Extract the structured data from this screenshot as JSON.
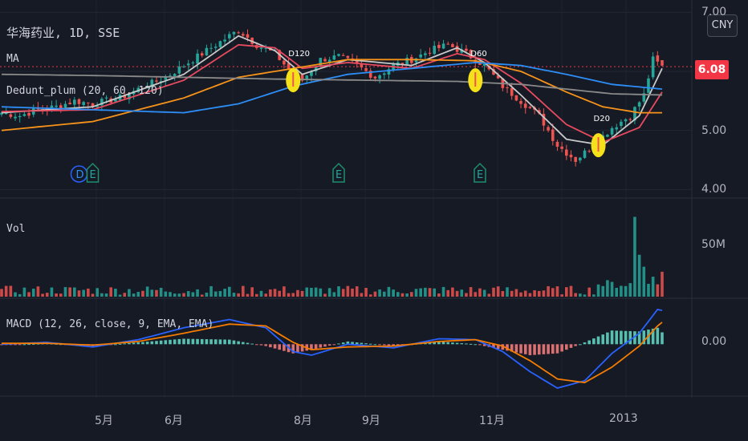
{
  "header": {
    "symbol_line": "华海药业, 1D, SSE",
    "ma_label": "MA",
    "dedunt_label": "Dedunt_plum (20, 60, 120)",
    "vol_label": "Vol",
    "macd_label": "MACD (12, 26, close, 9, EMA, EMA)"
  },
  "currency_button": "CNY",
  "last_price": "6.08",
  "colors": {
    "background": "#161a25",
    "up": "#26a69a",
    "down": "#ef5350",
    "ma_white": "#c9c9c9",
    "ma_red": "#e84a5f",
    "ma_orange": "#f7931a",
    "ma_blue": "#2e8ef7",
    "ma_gray": "#8a8a8a",
    "macd_line": "#2962ff",
    "signal_line": "#f57c00",
    "marker": "#f5e11a"
  },
  "chart_data": [
    {
      "type": "candlestick",
      "panel": "price",
      "y_ticks": [
        "7.00",
        "6.00",
        "5.00",
        "4.00"
      ],
      "ylim": [
        3.95,
        7.1
      ],
      "x_labels": [
        "5月",
        "6月",
        "8月",
        "9月",
        "11月",
        "2013"
      ],
      "x_label_index": [
        20,
        36,
        66,
        82,
        110,
        136
      ],
      "n_bars": 146,
      "close_path": [
        [
          0,
          5.3
        ],
        [
          4,
          5.25
        ],
        [
          8,
          5.35
        ],
        [
          12,
          5.4
        ],
        [
          16,
          5.5
        ],
        [
          20,
          5.45
        ],
        [
          26,
          5.55
        ],
        [
          30,
          5.7
        ],
        [
          36,
          5.9
        ],
        [
          42,
          6.2
        ],
        [
          48,
          6.5
        ],
        [
          52,
          6.7
        ],
        [
          56,
          6.45
        ],
        [
          60,
          6.3
        ],
        [
          64,
          5.95
        ],
        [
          66,
          5.85
        ],
        [
          70,
          6.2
        ],
        [
          74,
          6.25
        ],
        [
          78,
          6.1
        ],
        [
          82,
          5.9
        ],
        [
          86,
          6.1
        ],
        [
          90,
          6.2
        ],
        [
          94,
          6.35
        ],
        [
          98,
          6.45
        ],
        [
          102,
          6.3
        ],
        [
          106,
          6.1
        ],
        [
          110,
          5.75
        ],
        [
          114,
          5.5
        ],
        [
          118,
          5.25
        ],
        [
          122,
          4.75
        ],
        [
          126,
          4.5
        ],
        [
          130,
          4.75
        ],
        [
          134,
          5.05
        ],
        [
          138,
          5.25
        ],
        [
          141,
          5.6
        ],
        [
          143,
          6.2
        ],
        [
          145,
          6.08
        ]
      ],
      "series": [
        {
          "name": "MA white",
          "color": "#c9c9c9",
          "points": [
            [
              0,
              5.3
            ],
            [
              20,
              5.4
            ],
            [
              40,
              5.95
            ],
            [
              52,
              6.6
            ],
            [
              60,
              6.35
            ],
            [
              66,
              5.95
            ],
            [
              76,
              6.2
            ],
            [
              90,
              6.1
            ],
            [
              100,
              6.4
            ],
            [
              106,
              6.15
            ],
            [
              114,
              5.6
            ],
            [
              124,
              4.85
            ],
            [
              132,
              4.75
            ],
            [
              140,
              5.25
            ],
            [
              145,
              6.05
            ]
          ]
        },
        {
          "name": "MA red",
          "color": "#e84a5f",
          "points": [
            [
              0,
              5.32
            ],
            [
              20,
              5.35
            ],
            [
              40,
              5.85
            ],
            [
              52,
              6.45
            ],
            [
              60,
              6.4
            ],
            [
              66,
              6.05
            ],
            [
              76,
              6.15
            ],
            [
              90,
              6.05
            ],
            [
              100,
              6.3
            ],
            [
              106,
              6.2
            ],
            [
              114,
              5.8
            ],
            [
              124,
              5.1
            ],
            [
              132,
              4.8
            ],
            [
              140,
              5.05
            ],
            [
              145,
              5.65
            ]
          ]
        },
        {
          "name": "MA orange",
          "color": "#f7931a",
          "points": [
            [
              0,
              5.0
            ],
            [
              20,
              5.15
            ],
            [
              40,
              5.55
            ],
            [
              52,
              5.9
            ],
            [
              64,
              6.05
            ],
            [
              76,
              6.2
            ],
            [
              90,
              6.2
            ],
            [
              104,
              6.18
            ],
            [
              114,
              6.0
            ],
            [
              124,
              5.65
            ],
            [
              132,
              5.4
            ],
            [
              140,
              5.3
            ],
            [
              145,
              5.3
            ]
          ]
        },
        {
          "name": "MA blue",
          "color": "#2e8ef7",
          "points": [
            [
              0,
              5.4
            ],
            [
              20,
              5.35
            ],
            [
              40,
              5.3
            ],
            [
              52,
              5.45
            ],
            [
              64,
              5.75
            ],
            [
              76,
              5.95
            ],
            [
              90,
              6.05
            ],
            [
              104,
              6.15
            ],
            [
              114,
              6.1
            ],
            [
              124,
              5.95
            ],
            [
              134,
              5.78
            ],
            [
              145,
              5.7
            ]
          ]
        },
        {
          "name": "MA gray",
          "color": "#8a8a8a",
          "points": [
            [
              0,
              5.95
            ],
            [
              20,
              5.93
            ],
            [
              40,
              5.9
            ],
            [
              60,
              5.87
            ],
            [
              80,
              5.85
            ],
            [
              100,
              5.83
            ],
            [
              114,
              5.78
            ],
            [
              124,
              5.7
            ],
            [
              134,
              5.62
            ],
            [
              145,
              5.6
            ]
          ]
        }
      ],
      "markers": [
        {
          "label": "D120",
          "x": 64,
          "y": 5.85
        },
        {
          "label": "D60",
          "x": 104,
          "y": 5.85
        },
        {
          "label": "D20",
          "x": 131,
          "y": 4.75
        }
      ],
      "event_badges": [
        {
          "label": "D",
          "x": 17,
          "type": "dividend"
        },
        {
          "label": "E",
          "x": 20,
          "type": "earnings"
        },
        {
          "label": "E",
          "x": 74,
          "type": "earnings"
        },
        {
          "label": "E",
          "x": 105,
          "type": "earnings"
        }
      ]
    },
    {
      "type": "bar",
      "panel": "volume",
      "y_ticks": [
        "50M"
      ],
      "ylim": [
        0,
        90
      ],
      "description_values": "daily volume in millions, mostly 3-12M with a spike of ~80M near 2013",
      "spikes": [
        [
          139,
          80
        ],
        [
          140,
          42
        ],
        [
          141,
          30
        ],
        [
          143,
          20
        ],
        [
          145,
          25
        ]
      ]
    },
    {
      "type": "line",
      "panel": "macd",
      "y_ticks": [
        "0.00"
      ],
      "ylim": [
        -0.55,
        0.45
      ],
      "series": [
        {
          "name": "MACD",
          "color": "#2962ff",
          "points": [
            [
              0,
              0.0
            ],
            [
              10,
              0.02
            ],
            [
              20,
              -0.03
            ],
            [
              30,
              0.05
            ],
            [
              40,
              0.18
            ],
            [
              50,
              0.27
            ],
            [
              58,
              0.18
            ],
            [
              64,
              -0.08
            ],
            [
              68,
              -0.12
            ],
            [
              76,
              0.0
            ],
            [
              86,
              -0.04
            ],
            [
              96,
              0.06
            ],
            [
              104,
              0.05
            ],
            [
              110,
              -0.08
            ],
            [
              116,
              -0.3
            ],
            [
              122,
              -0.48
            ],
            [
              128,
              -0.4
            ],
            [
              134,
              -0.1
            ],
            [
              140,
              0.12
            ],
            [
              144,
              0.38
            ],
            [
              146,
              0.36
            ]
          ]
        },
        {
          "name": "Signal",
          "color": "#f57c00",
          "points": [
            [
              0,
              0.01
            ],
            [
              10,
              0.01
            ],
            [
              20,
              -0.01
            ],
            [
              30,
              0.03
            ],
            [
              40,
              0.12
            ],
            [
              50,
              0.22
            ],
            [
              58,
              0.2
            ],
            [
              64,
              0.02
            ],
            [
              68,
              -0.06
            ],
            [
              76,
              -0.03
            ],
            [
              86,
              -0.02
            ],
            [
              96,
              0.03
            ],
            [
              104,
              0.05
            ],
            [
              110,
              -0.02
            ],
            [
              116,
              -0.18
            ],
            [
              122,
              -0.38
            ],
            [
              128,
              -0.42
            ],
            [
              134,
              -0.25
            ],
            [
              140,
              -0.02
            ],
            [
              144,
              0.2
            ],
            [
              146,
              0.28
            ]
          ]
        }
      ]
    }
  ]
}
